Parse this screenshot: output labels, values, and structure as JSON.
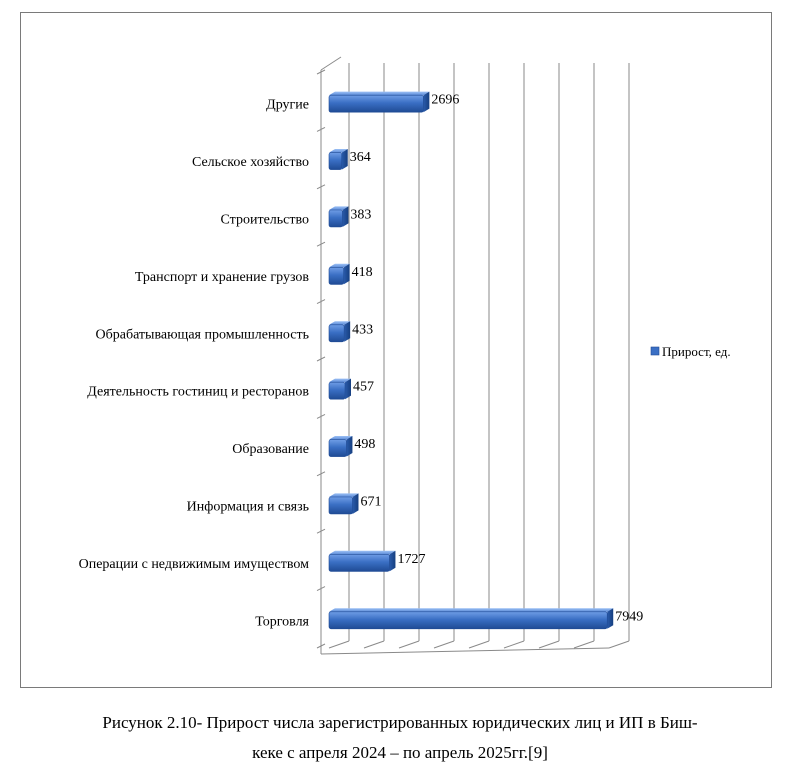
{
  "chart_data": {
    "type": "bar",
    "orientation": "horizontal",
    "style": "3d",
    "categories": [
      "Другие",
      "Сельское хозяйство",
      "Строительство",
      "Транспорт и хранение грузов",
      "Обрабатывающая промышленность",
      "Деятельность гостиниц и ресторанов",
      "Образование",
      "Информация и связь",
      "Операции с недвижимым имуществом",
      "Торговля"
    ],
    "series": [
      {
        "name": "Прирост, ед.",
        "color": "#3a6fc4",
        "values": [
          2696,
          364,
          383,
          418,
          433,
          457,
          498,
          671,
          1727,
          7949
        ],
        "labels": [
          "2696",
          "364",
          "383",
          "418",
          "433",
          "457",
          "498",
          "671",
          "1727",
          "7949"
        ]
      }
    ],
    "xlim": [
      0,
      8000
    ],
    "grid": true,
    "legend_position": "right"
  },
  "caption": {
    "line1": "Рисунок 2.10- Прирост числа зарегистрированных юридических лиц и ИП в Биш-",
    "line2": "кеке с апреля 2024 – по апрель 2025гг.[9]"
  }
}
